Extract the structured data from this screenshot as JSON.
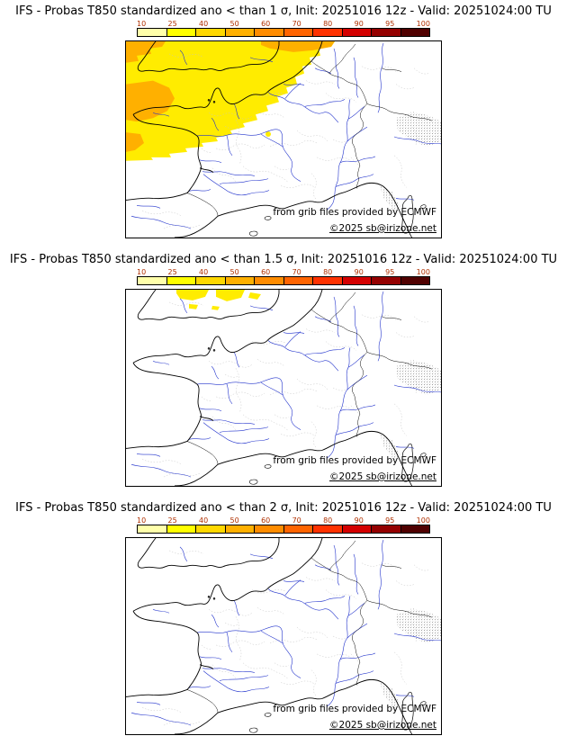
{
  "colors": {
    "anomaly_yellow": "#ffec00",
    "anomaly_orange": "#ffb000",
    "river": "#2233cc",
    "admin_boundary": "#c4c4c4",
    "coastline": "#000000",
    "tick_label": "#b03000"
  },
  "colorbar": {
    "tick_labels": [
      "10",
      "25",
      "40",
      "50",
      "60",
      "70",
      "80",
      "90",
      "95",
      "100"
    ],
    "segment_colors": [
      "#ffffaa",
      "#ffff00",
      "#ffd800",
      "#ffb000",
      "#ff8c00",
      "#ff6400",
      "#ff3200",
      "#d40000",
      "#940000",
      "#500000"
    ]
  },
  "panels": [
    {
      "id": "sigma-1",
      "title": "IFS - Probas T850  standardized ano < than 1 σ, Init: 20251016 12z - Valid: 20251024:00 TU",
      "threshold_sigma": "1",
      "credit_provider": "from grib files provided by ECMWF",
      "credit_copyright": "©2025 sb@irizone.net",
      "shading_summary": "Yellow (10-25%) probability area over southern England, the Channel, Brittany and northwest France; orange (25-40%) patches over western Brittany, the far west and the top-left edge; small isolated yellow spot south of the main area"
    },
    {
      "id": "sigma-1.5",
      "title": "IFS - Probas T850  standardized ano < than 1.5 σ, Init: 20251016 12z - Valid: 20251024:00 TU",
      "threshold_sigma": "1.5",
      "credit_provider": "from grib files provided by ECMWF",
      "credit_copyright": "©2025 sb@irizone.net",
      "shading_summary": "Small scattered yellow (10-25%) patches over southern England only"
    },
    {
      "id": "sigma-2",
      "title": "IFS - Probas T850  standardized ano < than 2 σ, Init: 20251016 12z - Valid: 20251024:00 TU",
      "threshold_sigma": "2",
      "credit_provider": "from grib files provided by ECMWF",
      "credit_copyright": "©2025 sb@irizone.net",
      "shading_summary": "No shaded probability areas (all below 10%)"
    }
  ]
}
